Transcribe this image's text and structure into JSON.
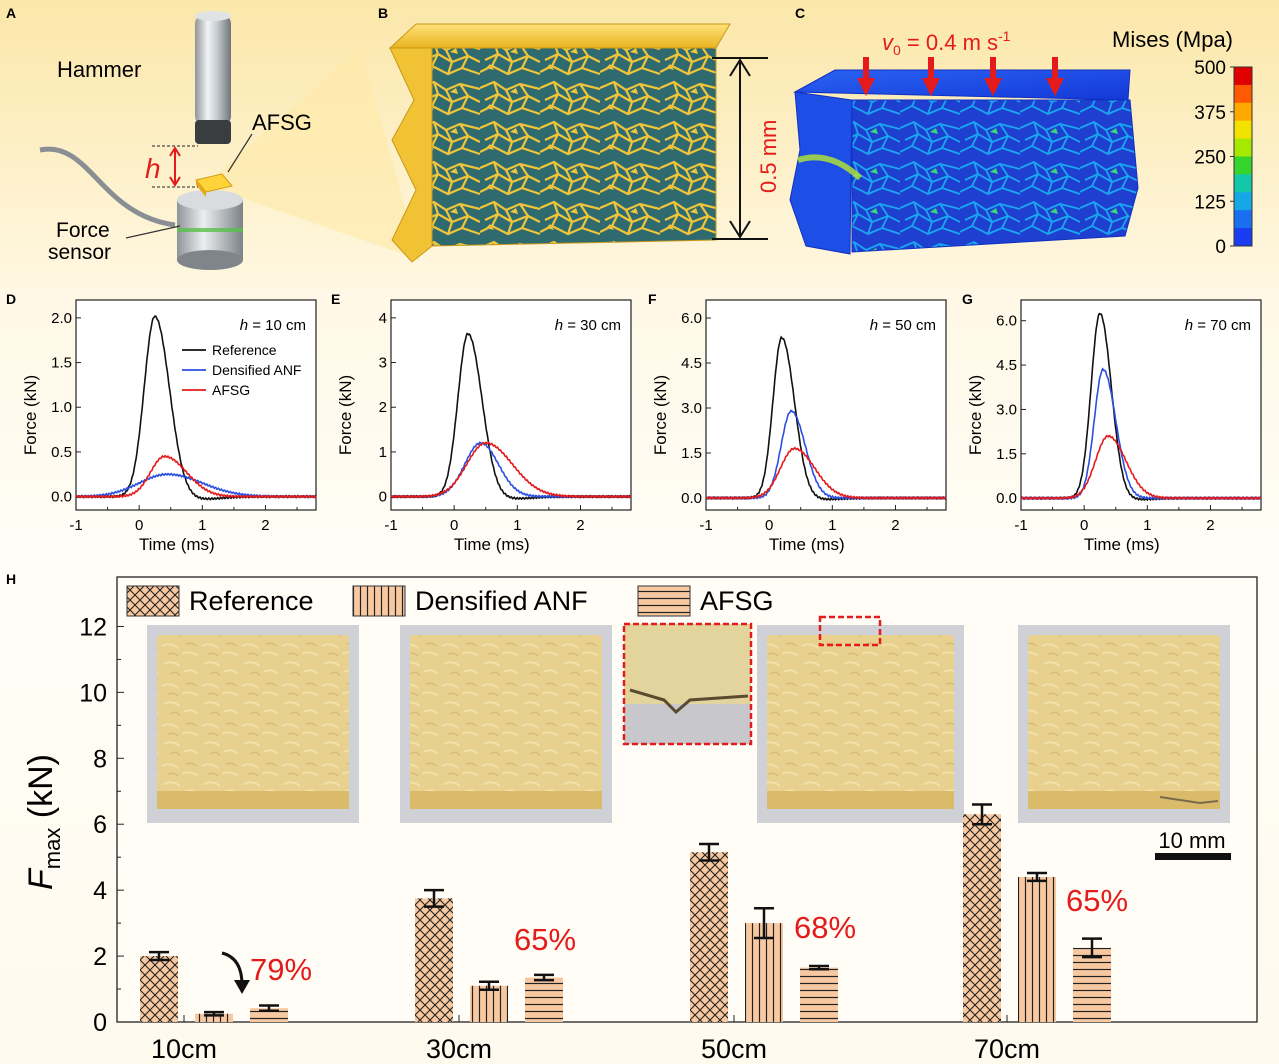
{
  "panels": {
    "a": {
      "letter": "A",
      "hammer": "Hammer",
      "afsg": "AFSG",
      "h": "h",
      "force": "Force",
      "sensor": "sensor"
    },
    "b": {
      "letter": "B",
      "thickness": "0.5 mm"
    },
    "c": {
      "letter": "C",
      "velocity_var": "v",
      "velocity_sub": "0",
      "velocity_text": " = 0.4 m s",
      "velocity_sup": "-1",
      "colorbar_title": "Mises (Mpa)",
      "colorbar_ticks": [
        "500",
        "375",
        "250",
        "125",
        "0"
      ],
      "colorbar_colors": [
        "#e00000",
        "#ff5a00",
        "#ffa800",
        "#f2e200",
        "#a6e800",
        "#34d62e",
        "#12c8a8",
        "#16a8e6",
        "#1a6ff0",
        "#1a3cf0"
      ]
    }
  },
  "chart_data": [
    {
      "id": "D",
      "letter": "D",
      "type": "line",
      "annotation_var": "h",
      "annotation_text": " = 10 cm",
      "xlabel": "Time (ms)",
      "ylabel": "Force (kN)",
      "xlim": [
        -1,
        2.8
      ],
      "ylim": [
        -0.15,
        2.2
      ],
      "xticks": [
        "-1",
        "0",
        "1",
        "2"
      ],
      "xtick_vals": [
        -1,
        0,
        1,
        2
      ],
      "yticks": [
        "0.0",
        "0.5",
        "1.0",
        "1.5",
        "2.0"
      ],
      "ytick_vals": [
        0,
        0.5,
        1.0,
        1.5,
        2.0
      ],
      "series": [
        {
          "name": "Reference",
          "color": "#111111",
          "peak": 2.02,
          "t0": 0.25,
          "sigma_l": 0.17,
          "sigma_r": 0.23,
          "under": -0.03
        },
        {
          "name": "Densified ANF",
          "color": "#2b4fe0",
          "peak": 0.25,
          "t0": 0.45,
          "sigma_l": 0.45,
          "sigma_r": 0.55,
          "under": 0
        },
        {
          "name": "AFSG",
          "color": "#e51b1b",
          "peak": 0.45,
          "t0": 0.4,
          "sigma_l": 0.22,
          "sigma_r": 0.35,
          "under": 0
        }
      ],
      "legend": [
        "Reference",
        "Densified ANF",
        "AFSG"
      ]
    },
    {
      "id": "E",
      "letter": "E",
      "type": "line",
      "annotation_var": "h",
      "annotation_text": " = 30 cm",
      "xlabel": "Time (ms)",
      "ylabel": "Force (kN)",
      "xlim": [
        -1,
        2.8
      ],
      "ylim": [
        -0.3,
        4.4
      ],
      "xticks": [
        "-1",
        "0",
        "1",
        "2"
      ],
      "xtick_vals": [
        -1,
        0,
        1,
        2
      ],
      "yticks": [
        "0",
        "1",
        "2",
        "3",
        "4"
      ],
      "ytick_vals": [
        0,
        1,
        2,
        3,
        4
      ],
      "series": [
        {
          "name": "Reference",
          "color": "#111111",
          "peak": 3.65,
          "t0": 0.22,
          "sigma_l": 0.16,
          "sigma_r": 0.22,
          "under": -0.05
        },
        {
          "name": "Densified ANF",
          "color": "#2b4fe0",
          "peak": 1.2,
          "t0": 0.42,
          "sigma_l": 0.25,
          "sigma_r": 0.28,
          "under": 0
        },
        {
          "name": "AFSG",
          "color": "#e51b1b",
          "peak": 1.2,
          "t0": 0.5,
          "sigma_l": 0.3,
          "sigma_r": 0.42,
          "under": 0
        }
      ]
    },
    {
      "id": "F",
      "letter": "F",
      "type": "line",
      "annotation_var": "h",
      "annotation_text": " = 50 cm",
      "xlabel": "Time (ms)",
      "ylabel": "Force (kN)",
      "xlim": [
        -1,
        2.8
      ],
      "ylim": [
        -0.4,
        6.6
      ],
      "xticks": [
        "-1",
        "0",
        "1",
        "2"
      ],
      "xtick_vals": [
        -1,
        0,
        1,
        2
      ],
      "yticks": [
        "0.0",
        "1.5",
        "3.0",
        "4.5",
        "6.0"
      ],
      "ytick_vals": [
        0,
        1.5,
        3.0,
        4.5,
        6.0
      ],
      "series": [
        {
          "name": "Reference",
          "color": "#111111",
          "peak": 5.35,
          "t0": 0.2,
          "sigma_l": 0.14,
          "sigma_r": 0.2,
          "under": -0.05
        },
        {
          "name": "Densified ANF",
          "color": "#2b4fe0",
          "peak": 2.9,
          "t0": 0.35,
          "sigma_l": 0.16,
          "sigma_r": 0.22,
          "under": 0
        },
        {
          "name": "AFSG",
          "color": "#e51b1b",
          "peak": 1.65,
          "t0": 0.4,
          "sigma_l": 0.22,
          "sigma_r": 0.32,
          "under": 0
        }
      ]
    },
    {
      "id": "G",
      "letter": "G",
      "type": "line",
      "annotation_var": "h",
      "annotation_text": " = 70 cm",
      "xlabel": "Time (ms)",
      "ylabel": "Force (kN)",
      "xlim": [
        -1,
        2.8
      ],
      "ylim": [
        -0.4,
        6.7
      ],
      "xticks": [
        "-1",
        "0",
        "1",
        "2"
      ],
      "xtick_vals": [
        -1,
        0,
        1,
        2
      ],
      "yticks": [
        "0.0",
        "1.5",
        "3.0",
        "4.5",
        "6.0"
      ],
      "ytick_vals": [
        0,
        1.5,
        3.0,
        4.5,
        6.0
      ],
      "series": [
        {
          "name": "Reference",
          "color": "#111111",
          "peak": 6.25,
          "t0": 0.25,
          "sigma_l": 0.14,
          "sigma_r": 0.18,
          "under": -0.05
        },
        {
          "name": "Densified ANF",
          "color": "#2b4fe0",
          "peak": 4.35,
          "t0": 0.3,
          "sigma_l": 0.14,
          "sigma_r": 0.2,
          "under": 0
        },
        {
          "name": "AFSG",
          "color": "#e51b1b",
          "peak": 2.1,
          "t0": 0.38,
          "sigma_l": 0.2,
          "sigma_r": 0.28,
          "under": 0
        }
      ]
    },
    {
      "id": "H",
      "letter": "H",
      "type": "bar",
      "categories": [
        "10cm",
        "30cm",
        "50cm",
        "70cm"
      ],
      "ylabel_main": "F",
      "ylabel_sub": "max",
      "ylabel_unit": " (kN)",
      "ylim": [
        0,
        13.5
      ],
      "yticks": [
        "0",
        "2",
        "4",
        "6",
        "8",
        "10",
        "12"
      ],
      "ytick_vals": [
        0,
        2,
        4,
        6,
        8,
        10,
        12
      ],
      "series": [
        {
          "name": "Reference",
          "pattern": "cross",
          "values": [
            2.0,
            3.75,
            5.15,
            6.3
          ],
          "errors": [
            0.12,
            0.25,
            0.25,
            0.3
          ]
        },
        {
          "name": "Densified ANF",
          "pattern": "vertical",
          "values": [
            0.25,
            1.1,
            3.0,
            4.4
          ],
          "errors": [
            0.05,
            0.12,
            0.45,
            0.12
          ]
        },
        {
          "name": "AFSG",
          "pattern": "horizontal",
          "values": [
            0.42,
            1.35,
            1.65,
            2.25
          ],
          "errors": [
            0.08,
            0.08,
            0.05,
            0.28
          ]
        }
      ],
      "reductions": [
        "79%",
        "65%",
        "68%",
        "65%"
      ],
      "scalebar": "10 mm"
    }
  ],
  "colors": {
    "reduction": "#e51b1b",
    "bar_fill": "#f8c9a0",
    "accent_red": "#e51b1b"
  }
}
